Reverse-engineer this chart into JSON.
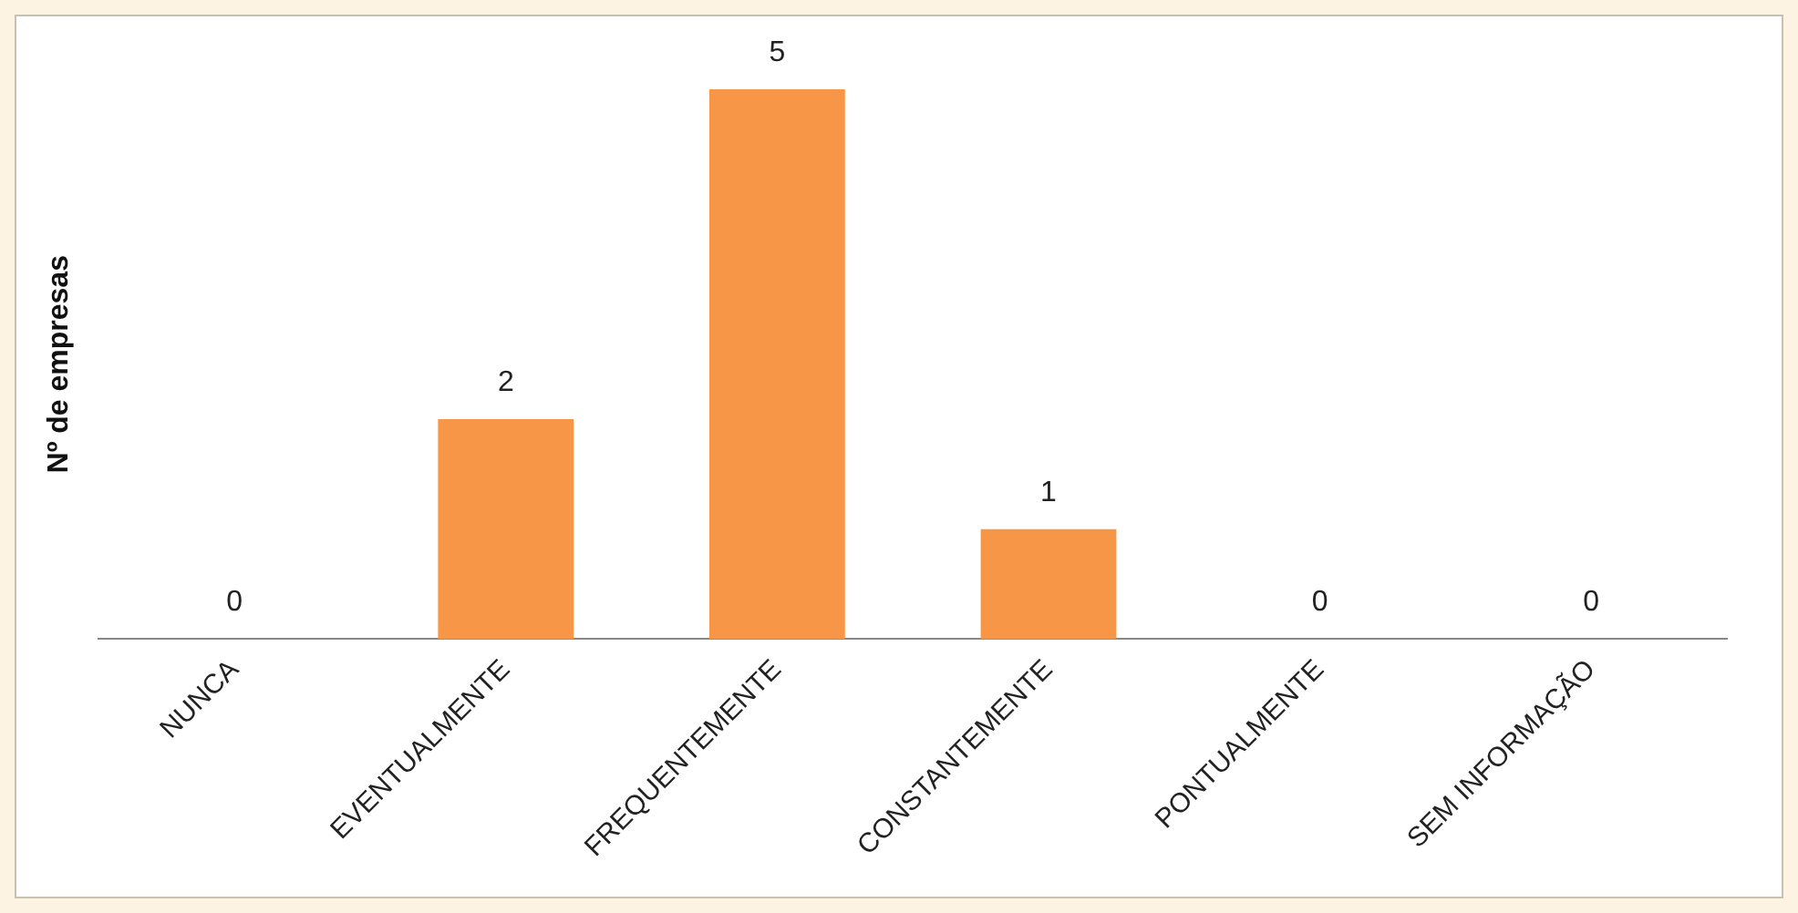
{
  "chart_data": {
    "type": "bar",
    "ylabel": "Nº de empresas",
    "categories": [
      "NUNCA",
      "EVENTUALMENTE",
      "FREQUENTEMENTE",
      "CONSTANTEMENTE",
      "PONTUALMENTE",
      "SEM INFORMAÇÃO"
    ],
    "values": [
      0,
      2,
      5,
      1,
      0,
      0
    ],
    "color": "#f79646",
    "data_labels": true,
    "grid": false,
    "legend": false,
    "tick_labels": "x"
  }
}
